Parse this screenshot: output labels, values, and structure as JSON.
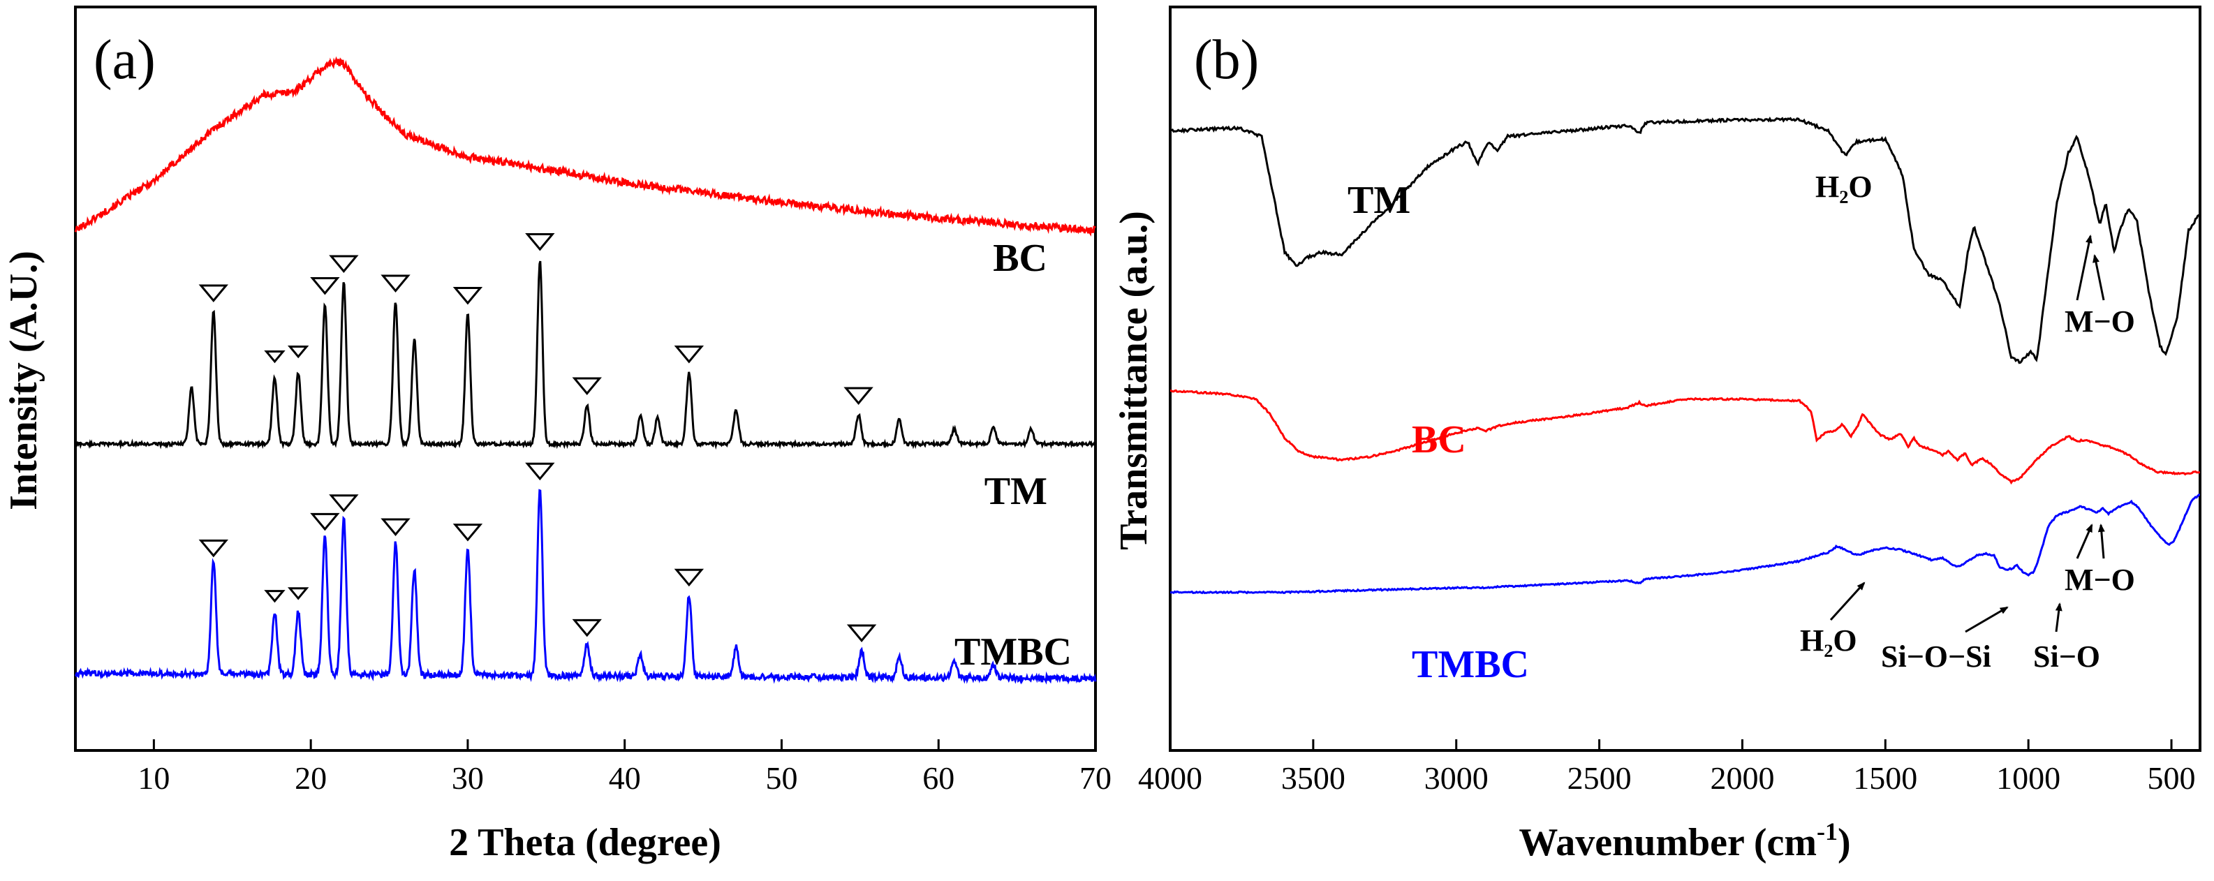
{
  "chart_data": [
    {
      "type": "line",
      "panel_label": "(a)",
      "xlabel": "2 Theta (degree)",
      "ylabel": "Intensity (A.U.)",
      "xlim": [
        5,
        70
      ],
      "xticks": [
        10,
        20,
        30,
        40,
        50,
        60,
        70
      ],
      "yticks": "none",
      "series": [
        {
          "name": "BC",
          "color": "#ff0000",
          "noise": 0.6,
          "offset": 0.0,
          "broad": [
            [
              5,
              0.1
            ],
            [
              10,
              0.35
            ],
            [
              14,
              0.62
            ],
            [
              17,
              0.78
            ],
            [
              19,
              0.8
            ],
            [
              21,
              0.93
            ],
            [
              22,
              0.95
            ],
            [
              23.5,
              0.78
            ],
            [
              26,
              0.58
            ],
            [
              30,
              0.47
            ],
            [
              34,
              0.42
            ],
            [
              40,
              0.34
            ],
            [
              50,
              0.24
            ],
            [
              60,
              0.16
            ],
            [
              70,
              0.1
            ]
          ],
          "peaks": []
        },
        {
          "name": "TM",
          "color": "#000000",
          "noise": 0.22,
          "offset": 0.0,
          "broad": [
            [
              5,
              0.1
            ],
            [
              70,
              0.1
            ]
          ],
          "peaks": [
            [
              12.4,
              0.23
            ],
            [
              13.8,
              0.54
            ],
            [
              17.7,
              0.27
            ],
            [
              19.2,
              0.29
            ],
            [
              20.9,
              0.57
            ],
            [
              22.1,
              0.66
            ],
            [
              25.4,
              0.58
            ],
            [
              26.6,
              0.43
            ],
            [
              30.0,
              0.53
            ],
            [
              34.6,
              0.75
            ],
            [
              37.6,
              0.16
            ],
            [
              41.0,
              0.12
            ],
            [
              42.1,
              0.11
            ],
            [
              44.1,
              0.29
            ],
            [
              47.1,
              0.14
            ],
            [
              54.9,
              0.12
            ],
            [
              57.5,
              0.1
            ],
            [
              61.0,
              0.06
            ],
            [
              63.5,
              0.07
            ],
            [
              65.9,
              0.06
            ]
          ]
        },
        {
          "name": "TMBC",
          "color": "#0000ff",
          "noise": 0.38,
          "offset": 0.0,
          "broad": [
            [
              5,
              0.12
            ],
            [
              70,
              0.1
            ]
          ],
          "peaks": [
            [
              13.8,
              0.42
            ],
            [
              17.7,
              0.23
            ],
            [
              19.2,
              0.24
            ],
            [
              20.9,
              0.52
            ],
            [
              22.1,
              0.59
            ],
            [
              25.4,
              0.5
            ],
            [
              26.6,
              0.4
            ],
            [
              30.0,
              0.48
            ],
            [
              34.6,
              0.71
            ],
            [
              37.6,
              0.12
            ],
            [
              41.0,
              0.08
            ],
            [
              44.1,
              0.31
            ],
            [
              47.1,
              0.11
            ],
            [
              55.1,
              0.1
            ],
            [
              57.5,
              0.08
            ],
            [
              61.0,
              0.06
            ],
            [
              63.5,
              0.05
            ]
          ]
        }
      ],
      "series_labels": [
        "BC",
        "TM",
        "TMBC"
      ],
      "markers_TM": [
        13.8,
        17.7,
        19.2,
        20.9,
        22.1,
        25.4,
        30.0,
        34.6,
        37.6,
        44.1,
        54.9
      ],
      "markers_TMBC": [
        13.8,
        17.7,
        19.2,
        20.9,
        22.1,
        25.4,
        30.0,
        34.6,
        37.6,
        44.1,
        55.1
      ]
    },
    {
      "type": "line",
      "panel_label": "(b)",
      "xlabel": "Wavenumber (cm",
      "xlabel_sup": "-1",
      "xlabel_close": ")",
      "ylabel": "Transmittance (a.u.)",
      "xlim": [
        4000,
        400
      ],
      "xticks": [
        4000,
        3500,
        3000,
        2500,
        2000,
        1500,
        1000,
        500
      ],
      "yticks": "none",
      "series": [
        {
          "name": "TM",
          "color": "#000000",
          "points": [
            [
              4000,
              0.88
            ],
            [
              3760,
              0.89
            ],
            [
              3680,
              0.86
            ],
            [
              3640,
              0.65
            ],
            [
              3600,
              0.44
            ],
            [
              3560,
              0.39
            ],
            [
              3520,
              0.42
            ],
            [
              3470,
              0.44
            ],
            [
              3400,
              0.43
            ],
            [
              3300,
              0.54
            ],
            [
              3200,
              0.64
            ],
            [
              3100,
              0.75
            ],
            [
              3000,
              0.82
            ],
            [
              2960,
              0.84
            ],
            [
              2925,
              0.76
            ],
            [
              2890,
              0.84
            ],
            [
              2855,
              0.81
            ],
            [
              2820,
              0.86
            ],
            [
              2600,
              0.88
            ],
            [
              2400,
              0.9
            ],
            [
              2360,
              0.87
            ],
            [
              2340,
              0.91
            ],
            [
              2000,
              0.92
            ],
            [
              1800,
              0.92
            ],
            [
              1700,
              0.88
            ],
            [
              1640,
              0.79
            ],
            [
              1600,
              0.84
            ],
            [
              1500,
              0.85
            ],
            [
              1440,
              0.72
            ],
            [
              1400,
              0.45
            ],
            [
              1350,
              0.36
            ],
            [
              1300,
              0.34
            ],
            [
              1240,
              0.24
            ],
            [
              1210,
              0.45
            ],
            [
              1190,
              0.53
            ],
            [
              1170,
              0.47
            ],
            [
              1100,
              0.25
            ],
            [
              1060,
              0.06
            ],
            [
              1030,
              0.04
            ],
            [
              990,
              0.08
            ],
            [
              970,
              0.05
            ],
            [
              940,
              0.3
            ],
            [
              900,
              0.62
            ],
            [
              860,
              0.8
            ],
            [
              830,
              0.86
            ],
            [
              790,
              0.72
            ],
            [
              750,
              0.54
            ],
            [
              730,
              0.62
            ],
            [
              700,
              0.44
            ],
            [
              680,
              0.52
            ],
            [
              650,
              0.6
            ],
            [
              620,
              0.55
            ],
            [
              580,
              0.3
            ],
            [
              540,
              0.1
            ],
            [
              520,
              0.07
            ],
            [
              480,
              0.2
            ],
            [
              440,
              0.52
            ],
            [
              400,
              0.58
            ]
          ]
        },
        {
          "name": "BC",
          "color": "#ff0000",
          "points": [
            [
              4000,
              0.58
            ],
            [
              3800,
              0.56
            ],
            [
              3700,
              0.53
            ],
            [
              3650,
              0.44
            ],
            [
              3600,
              0.3
            ],
            [
              3550,
              0.22
            ],
            [
              3500,
              0.19
            ],
            [
              3400,
              0.17
            ],
            [
              3300,
              0.19
            ],
            [
              3200,
              0.23
            ],
            [
              3100,
              0.28
            ],
            [
              3000,
              0.33
            ],
            [
              2925,
              0.36
            ],
            [
              2900,
              0.34
            ],
            [
              2855,
              0.37
            ],
            [
              2800,
              0.39
            ],
            [
              2600,
              0.43
            ],
            [
              2400,
              0.48
            ],
            [
              2360,
              0.51
            ],
            [
              2340,
              0.49
            ],
            [
              2200,
              0.53
            ],
            [
              2000,
              0.53
            ],
            [
              1800,
              0.52
            ],
            [
              1760,
              0.46
            ],
            [
              1740,
              0.29
            ],
            [
              1710,
              0.33
            ],
            [
              1680,
              0.34
            ],
            [
              1650,
              0.38
            ],
            [
              1620,
              0.31
            ],
            [
              1600,
              0.36
            ],
            [
              1580,
              0.44
            ],
            [
              1560,
              0.4
            ],
            [
              1520,
              0.32
            ],
            [
              1480,
              0.29
            ],
            [
              1450,
              0.33
            ],
            [
              1420,
              0.25
            ],
            [
              1400,
              0.3
            ],
            [
              1380,
              0.25
            ],
            [
              1350,
              0.24
            ],
            [
              1300,
              0.2
            ],
            [
              1280,
              0.22
            ],
            [
              1250,
              0.17
            ],
            [
              1220,
              0.21
            ],
            [
              1200,
              0.14
            ],
            [
              1160,
              0.18
            ],
            [
              1120,
              0.13
            ],
            [
              1100,
              0.09
            ],
            [
              1060,
              0.04
            ],
            [
              1030,
              0.06
            ],
            [
              1000,
              0.12
            ],
            [
              960,
              0.19
            ],
            [
              930,
              0.24
            ],
            [
              900,
              0.27
            ],
            [
              860,
              0.31
            ],
            [
              830,
              0.28
            ],
            [
              800,
              0.29
            ],
            [
              750,
              0.26
            ],
            [
              700,
              0.24
            ],
            [
              650,
              0.2
            ],
            [
              600,
              0.14
            ],
            [
              550,
              0.1
            ],
            [
              500,
              0.09
            ],
            [
              450,
              0.09
            ],
            [
              400,
              0.1
            ]
          ]
        },
        {
          "name": "TMBC",
          "color": "#0000ff",
          "points": [
            [
              4000,
              0.3
            ],
            [
              3800,
              0.3
            ],
            [
              3600,
              0.3
            ],
            [
              3400,
              0.31
            ],
            [
              3200,
              0.32
            ],
            [
              3000,
              0.33
            ],
            [
              2925,
              0.33
            ],
            [
              2800,
              0.34
            ],
            [
              2600,
              0.36
            ],
            [
              2400,
              0.38
            ],
            [
              2360,
              0.36
            ],
            [
              2340,
              0.39
            ],
            [
              2200,
              0.41
            ],
            [
              2000,
              0.45
            ],
            [
              1800,
              0.51
            ],
            [
              1700,
              0.57
            ],
            [
              1670,
              0.61
            ],
            [
              1640,
              0.59
            ],
            [
              1600,
              0.55
            ],
            [
              1550,
              0.58
            ],
            [
              1500,
              0.6
            ],
            [
              1450,
              0.59
            ],
            [
              1400,
              0.56
            ],
            [
              1340,
              0.52
            ],
            [
              1300,
              0.53
            ],
            [
              1250,
              0.47
            ],
            [
              1220,
              0.5
            ],
            [
              1180,
              0.55
            ],
            [
              1150,
              0.56
            ],
            [
              1120,
              0.55
            ],
            [
              1100,
              0.47
            ],
            [
              1080,
              0.45
            ],
            [
              1060,
              0.46
            ],
            [
              1040,
              0.48
            ],
            [
              1020,
              0.44
            ],
            [
              1000,
              0.42
            ],
            [
              980,
              0.44
            ],
            [
              960,
              0.55
            ],
            [
              930,
              0.75
            ],
            [
              900,
              0.82
            ],
            [
              870,
              0.84
            ],
            [
              840,
              0.86
            ],
            [
              820,
              0.88
            ],
            [
              790,
              0.86
            ],
            [
              760,
              0.84
            ],
            [
              740,
              0.87
            ],
            [
              720,
              0.83
            ],
            [
              700,
              0.86
            ],
            [
              670,
              0.89
            ],
            [
              640,
              0.91
            ],
            [
              620,
              0.88
            ],
            [
              590,
              0.8
            ],
            [
              560,
              0.72
            ],
            [
              530,
              0.66
            ],
            [
              510,
              0.62
            ],
            [
              490,
              0.65
            ],
            [
              460,
              0.78
            ],
            [
              430,
              0.92
            ],
            [
              400,
              0.96
            ]
          ]
        }
      ],
      "series_labels": [
        "TM",
        "BC",
        "TMBC"
      ],
      "annotations": {
        "h2o_tm": "H₂O",
        "mo_tm": "M−O",
        "h2o_tmbc": "H₂O",
        "siosi": "Si−O−Si",
        "sio": "Si−O",
        "mo_tmbc": "M−O"
      }
    }
  ]
}
